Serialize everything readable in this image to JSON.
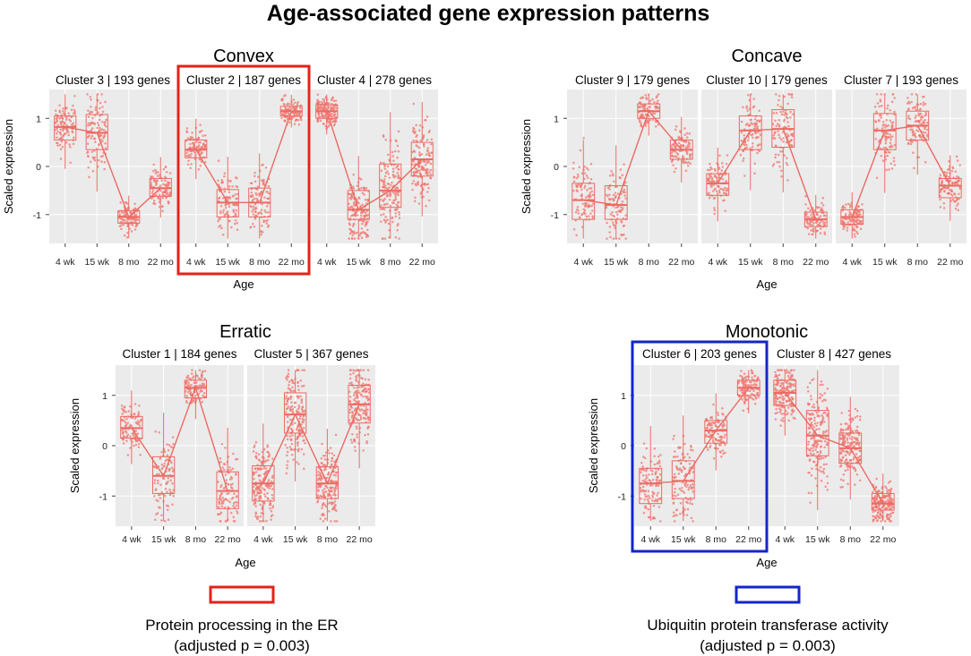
{
  "figure": {
    "title": "Age-associated gene expression patterns",
    "colors": {
      "points": "#f0766d",
      "box": "#ec6a63",
      "highlight_red": "#e2231a",
      "highlight_blue": "#1326c8",
      "panel_bg": "#ebebeb"
    }
  },
  "chart_data": [
    {
      "type": "box",
      "group": "Convex",
      "xlabel": "Age",
      "ylabel": "Scaled expression",
      "categories": [
        "4 wk",
        "15 wk",
        "8 mo",
        "22 mo"
      ],
      "yticks": [
        "1",
        "0",
        "-1"
      ],
      "ylim": [
        -1.6,
        1.6
      ],
      "panels": [
        {
          "title": "Cluster 3 | 193 genes",
          "genes": 193,
          "highlight": "",
          "medians": [
            0.82,
            0.7,
            -1.05,
            -0.45
          ],
          "q1": [
            0.55,
            0.35,
            -1.18,
            -0.62
          ],
          "q3": [
            1.05,
            1.08,
            -0.92,
            -0.25
          ]
        },
        {
          "title": "Cluster 2 | 187 genes",
          "genes": 187,
          "highlight": "red",
          "medians": [
            0.35,
            -0.75,
            -0.75,
            1.15
          ],
          "q1": [
            0.18,
            -1.05,
            -1.05,
            1.05
          ],
          "q3": [
            0.55,
            -0.48,
            -0.45,
            1.25
          ]
        },
        {
          "title": "Cluster 4 | 278 genes",
          "genes": 278,
          "highlight": "",
          "medians": [
            1.15,
            -0.9,
            -0.5,
            0.15
          ],
          "q1": [
            1.0,
            -1.1,
            -0.85,
            -0.2
          ],
          "q3": [
            1.28,
            -0.5,
            0.05,
            0.5
          ]
        }
      ]
    },
    {
      "type": "box",
      "group": "Concave",
      "xlabel": "Age",
      "ylabel": "Scaled expression",
      "categories": [
        "4 wk",
        "15 wk",
        "8 mo",
        "22 mo"
      ],
      "yticks": [
        "1",
        "0",
        "-1"
      ],
      "ylim": [
        -1.6,
        1.6
      ],
      "panels": [
        {
          "title": "Cluster 9 | 179 genes",
          "genes": 179,
          "highlight": "",
          "medians": [
            -0.7,
            -0.8,
            1.15,
            0.35
          ],
          "q1": [
            -1.1,
            -1.1,
            1.0,
            0.15
          ],
          "q3": [
            -0.35,
            -0.4,
            1.3,
            0.55
          ]
        },
        {
          "title": "Cluster 10 | 179 genes",
          "genes": 179,
          "highlight": "",
          "medians": [
            -0.35,
            0.75,
            0.78,
            -1.1
          ],
          "q1": [
            -0.6,
            0.35,
            0.4,
            -1.25
          ],
          "q3": [
            -0.15,
            1.05,
            1.18,
            -0.95
          ]
        },
        {
          "title": "Cluster 7 | 193 genes",
          "genes": 193,
          "highlight": "",
          "medians": [
            -1.05,
            0.75,
            0.85,
            -0.4
          ],
          "q1": [
            -1.2,
            0.35,
            0.55,
            -0.65
          ],
          "q3": [
            -0.9,
            1.1,
            1.15,
            -0.25
          ]
        }
      ]
    },
    {
      "type": "box",
      "group": "Erratic",
      "xlabel": "Age",
      "ylabel": "Scaled expression",
      "categories": [
        "4 wk",
        "15 wk",
        "8 mo",
        "22 mo"
      ],
      "yticks": [
        "1",
        "0",
        "-1"
      ],
      "ylim": [
        -1.6,
        1.6
      ],
      "panels": [
        {
          "title": "Cluster 1 | 184 genes",
          "genes": 184,
          "highlight": "",
          "medians": [
            0.35,
            -0.6,
            1.15,
            -0.9
          ],
          "q1": [
            0.15,
            -0.95,
            0.95,
            -1.25
          ],
          "q3": [
            0.58,
            -0.22,
            1.3,
            -0.52
          ]
        },
        {
          "title": "Cluster 5 | 367 genes",
          "genes": 367,
          "highlight": "",
          "medians": [
            -0.75,
            0.62,
            -0.75,
            0.82
          ],
          "q1": [
            -1.1,
            0.25,
            -1.05,
            0.45
          ],
          "q3": [
            -0.4,
            1.05,
            -0.42,
            1.2
          ]
        }
      ]
    },
    {
      "type": "box",
      "group": "Monotonic",
      "xlabel": "Age",
      "ylabel": "Scaled expression",
      "categories": [
        "4 wk",
        "15 wk",
        "8 mo",
        "22 mo"
      ],
      "yticks": [
        "1",
        "0",
        "-1"
      ],
      "ylim": [
        -1.6,
        1.6
      ],
      "panels": [
        {
          "title": "Cluster 6 | 203 genes",
          "genes": 203,
          "highlight": "blue",
          "medians": [
            -0.75,
            -0.7,
            0.3,
            1.15
          ],
          "q1": [
            -1.15,
            -1.05,
            0.05,
            1.0
          ],
          "q3": [
            -0.45,
            -0.3,
            0.5,
            1.3
          ]
        },
        {
          "title": "Cluster 8 | 427 genes",
          "genes": 427,
          "highlight": "",
          "medians": [
            1.05,
            0.2,
            -0.05,
            -1.15
          ],
          "q1": [
            0.8,
            -0.2,
            -0.35,
            -1.28
          ],
          "q3": [
            1.3,
            0.7,
            0.25,
            -0.95
          ]
        }
      ]
    }
  ],
  "legend": [
    {
      "color": "red",
      "line1": "Protein processing in the ER",
      "line2": "(adjusted p = 0.003)"
    },
    {
      "color": "blue",
      "line1": "Ubiquitin protein transferase activity",
      "line2": "(adjusted p = 0.003)"
    }
  ]
}
